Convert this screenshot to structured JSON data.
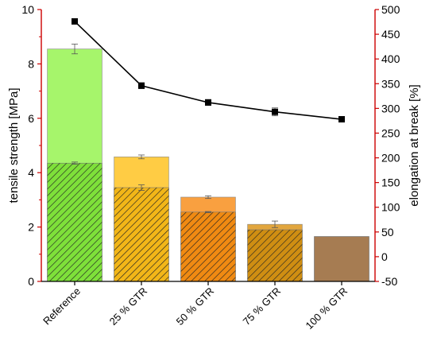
{
  "chart_data": {
    "type": "bar",
    "categories": [
      "Reference",
      "25 % GTR",
      "50 % GTR",
      "75 % GTR",
      "100 % GTR"
    ],
    "ylabel": "tensile strength [MPa]",
    "y2label": "elongation at break [%]",
    "ylim": [
      0,
      10
    ],
    "yticks": [
      "0",
      "2",
      "4",
      "6",
      "8",
      "10"
    ],
    "y2lim": [
      -50,
      500
    ],
    "y2ticks": [
      "-50",
      "0",
      "50",
      "100",
      "150",
      "200",
      "250",
      "300",
      "350",
      "400",
      "450",
      "500"
    ],
    "grid": false,
    "series": [
      {
        "kind": "bar",
        "layer": "total",
        "values": [
          8.55,
          4.58,
          3.1,
          2.1,
          1.65
        ],
        "errors": [
          0.18,
          0.07,
          0.05,
          0.12,
          0.0
        ],
        "fill": "solid-light",
        "colors": [
          "#a6f56b",
          "#ffcc44",
          "#f9a040",
          "#e2a63e",
          "#a67c52"
        ]
      },
      {
        "kind": "bar",
        "layer": "inner",
        "values": [
          4.35,
          3.45,
          2.55,
          1.9,
          1.65
        ],
        "errors": [
          0.04,
          0.1,
          0.02,
          0.0,
          0.0
        ],
        "fill": "hatched",
        "colors": [
          "#7ee03a",
          "#f2b618",
          "#f08a12",
          "#cf8e12",
          "#a67c52"
        ]
      },
      {
        "kind": "line",
        "axis": "right",
        "marker": "square",
        "values": [
          476,
          346,
          312,
          293,
          278
        ],
        "errors": [
          0,
          6,
          6,
          8,
          5
        ],
        "color": "#000000"
      }
    ],
    "axis_colors": {
      "left": "#cc0000",
      "right": "#cc0000",
      "bottom": "#000000"
    }
  }
}
